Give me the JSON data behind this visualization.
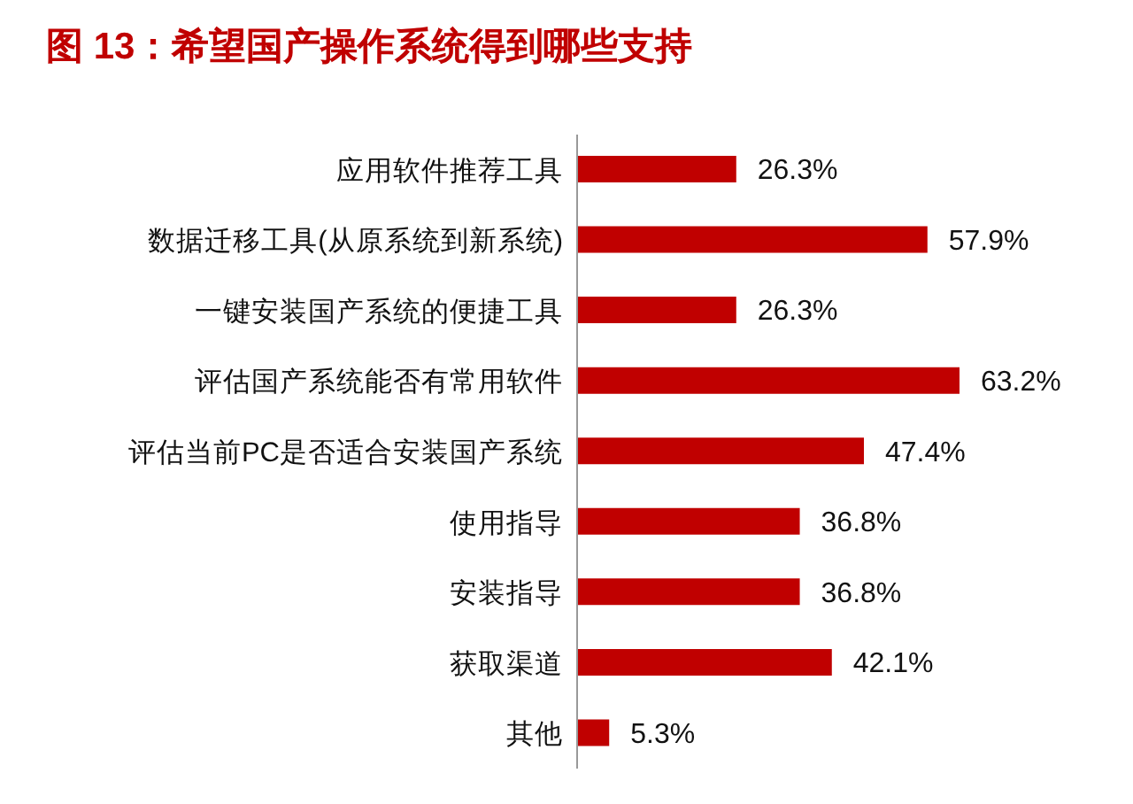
{
  "chart_data": {
    "type": "bar",
    "orientation": "horizontal",
    "title": "图 13：希望国产操作系统得到哪些支持",
    "categories": [
      "应用软件推荐工具",
      "数据迁移工具(从原系统到新系统)",
      "一键安装国产系统的便捷工具",
      "评估国产系统能否有常用软件",
      "评估当前PC是否适合安装国产系统",
      "使用指导",
      "安装指导",
      "获取渠道",
      "其他"
    ],
    "values": [
      26.3,
      57.9,
      26.3,
      63.2,
      47.4,
      36.8,
      36.8,
      42.1,
      5.3
    ],
    "value_labels": [
      "26.3%",
      "57.9%",
      "26.3%",
      "63.2%",
      "47.4%",
      "36.8%",
      "36.8%",
      "42.1%",
      "5.3%"
    ],
    "color": "#c00000",
    "grid": false,
    "legend": false
  }
}
